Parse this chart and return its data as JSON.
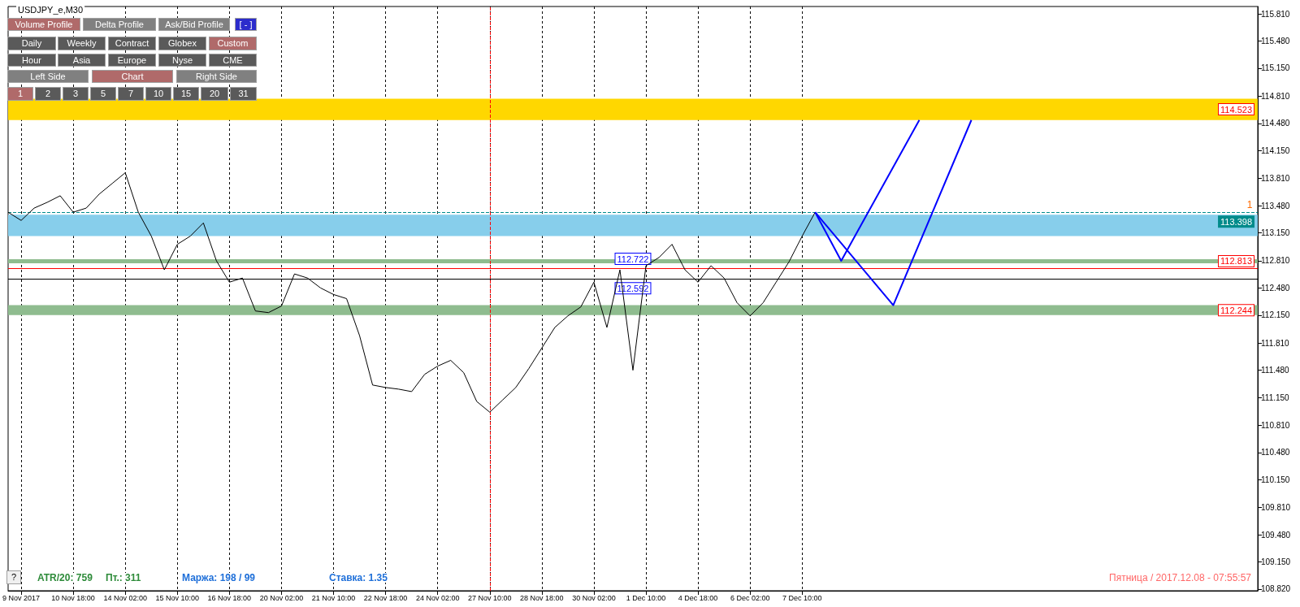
{
  "chart_data": {
    "type": "line",
    "title": "USDJPY_e,M30",
    "categories": [
      null,
      "9 Nov 2017",
      null,
      null,
      null,
      "10 Nov 18:00",
      null,
      null,
      null,
      "14 Nov 02:00",
      null,
      null,
      null,
      "15 Nov 10:00",
      null,
      null,
      null,
      "16 Nov 18:00",
      null,
      null,
      null,
      "20 Nov 02:00",
      null,
      null,
      null,
      "21 Nov 10:00",
      null,
      null,
      null,
      "22 Nov 18:00",
      null,
      null,
      null,
      "24 Nov 02:00",
      null,
      null,
      null,
      "27 Nov 10:00",
      null,
      null,
      null,
      "28 Nov 18:00",
      null,
      null,
      null,
      "30 Nov 02:00",
      null,
      null,
      null,
      "1 Dec 10:00",
      null,
      null,
      null,
      "4 Dec 18:00",
      null,
      null,
      null,
      "6 Dec 02:00",
      null,
      null,
      null,
      "7 Dec 10:00",
      null,
      null,
      null,
      null,
      null,
      null,
      null,
      null,
      null,
      null,
      null,
      null,
      null,
      null,
      null,
      null,
      null,
      null,
      null,
      null,
      null,
      null,
      null,
      null,
      null,
      null,
      null,
      null,
      null,
      null,
      null,
      null,
      null,
      null,
      null
    ],
    "series": [
      {
        "color": "#000000",
        "values": [
          113.4,
          113.3,
          113.45,
          113.52,
          113.6,
          113.4,
          113.45,
          113.62,
          113.75,
          113.88,
          113.4,
          113.11,
          112.7,
          113.01,
          113.11,
          113.27,
          112.81,
          112.55,
          112.6,
          112.2,
          112.18,
          112.26,
          112.65,
          112.6,
          112.48,
          112.4,
          112.35,
          111.9,
          111.3,
          111.27,
          111.25,
          111.22,
          111.43,
          111.53,
          111.6,
          111.45,
          111.1,
          110.97,
          111.12,
          111.27,
          111.5,
          111.75,
          112.0,
          112.14,
          112.25,
          112.55,
          112.0,
          112.7,
          111.48,
          112.75,
          112.85,
          113.01,
          112.7,
          112.55,
          112.75,
          112.6,
          112.3,
          112.14,
          112.3,
          112.55,
          112.8,
          113.11,
          113.4,
          null,
          null,
          null,
          null,
          null,
          null,
          null,
          null,
          null,
          null,
          null,
          null,
          null,
          null,
          null,
          null,
          null,
          null,
          null,
          null,
          null,
          null,
          null,
          null,
          null,
          null,
          null,
          null,
          null,
          null,
          null,
          null,
          null,
          null
        ]
      },
      {
        "color": "#0000ff",
        "values": [
          null,
          null,
          null,
          null,
          null,
          null,
          null,
          null,
          null,
          null,
          null,
          null,
          null,
          null,
          null,
          null,
          null,
          null,
          null,
          null,
          null,
          null,
          null,
          null,
          null,
          null,
          null,
          null,
          null,
          null,
          null,
          null,
          null,
          null,
          null,
          null,
          null,
          null,
          null,
          null,
          null,
          null,
          null,
          null,
          null,
          null,
          null,
          null,
          null,
          null,
          null,
          null,
          null,
          null,
          null,
          null,
          null,
          null,
          null,
          null,
          null,
          null,
          113.4,
          null,
          112.81,
          null,
          null,
          null,
          null,
          null,
          114.52,
          null,
          null,
          null,
          null,
          null,
          null,
          null,
          null,
          null,
          null,
          null,
          null,
          null,
          null,
          null,
          null,
          null,
          null,
          null,
          null,
          null,
          null,
          null,
          null,
          null,
          null
        ]
      },
      {
        "color": "#0000ff",
        "values": [
          null,
          null,
          null,
          null,
          null,
          null,
          null,
          null,
          null,
          null,
          null,
          null,
          null,
          null,
          null,
          null,
          null,
          null,
          null,
          null,
          null,
          null,
          null,
          null,
          null,
          null,
          null,
          null,
          null,
          null,
          null,
          null,
          null,
          null,
          null,
          null,
          null,
          null,
          null,
          null,
          null,
          null,
          null,
          null,
          null,
          null,
          null,
          null,
          null,
          null,
          null,
          null,
          null,
          null,
          null,
          null,
          null,
          null,
          null,
          null,
          null,
          null,
          113.4,
          null,
          null,
          null,
          null,
          null,
          112.27,
          null,
          null,
          null,
          null,
          null,
          114.52,
          null,
          null,
          null,
          null,
          null,
          null,
          null,
          null,
          null,
          null,
          null,
          null,
          null,
          null,
          null,
          null,
          null,
          null,
          null,
          null,
          null,
          null
        ]
      }
    ],
    "ylim": [
      108.8,
      115.9
    ],
    "yticks": [
      {
        "value": 108.82,
        "label": "108.820"
      },
      {
        "value": 109.15,
        "label": "109.150"
      },
      {
        "value": 109.48,
        "label": "109.480"
      },
      {
        "value": 109.81,
        "label": "109.810"
      },
      {
        "value": 110.15,
        "label": "110.150"
      },
      {
        "value": 110.48,
        "label": "110.480"
      },
      {
        "value": 110.81,
        "label": "110.810"
      },
      {
        "value": 111.15,
        "label": "111.150"
      },
      {
        "value": 111.48,
        "label": "111.480"
      },
      {
        "value": 111.81,
        "label": "111.810"
      },
      {
        "value": 112.15,
        "label": "112.150"
      },
      {
        "value": 112.48,
        "label": "112.480"
      },
      {
        "value": 112.81,
        "label": "112.810"
      },
      {
        "value": 113.15,
        "label": "113.150"
      },
      {
        "value": 113.48,
        "label": "113.480"
      },
      {
        "value": 113.81,
        "label": "113.810"
      },
      {
        "value": 114.15,
        "label": "114.150"
      },
      {
        "value": 114.48,
        "label": "114.480"
      },
      {
        "value": 114.81,
        "label": "114.810"
      },
      {
        "value": 115.15,
        "label": "115.150"
      },
      {
        "value": 115.48,
        "label": "115.480"
      },
      {
        "value": 115.81,
        "label": "115.810"
      }
    ],
    "grid": "x",
    "line_style": "solid",
    "marker": "none",
    "ref_lines": [
      {
        "axis": "y",
        "value": 113.398,
        "label": "113.398",
        "color": "#008b8b",
        "line_style": "dashed"
      },
      {
        "axis": "y",
        "value": 112.722,
        "label": "112.722",
        "color": "#ff0000",
        "line_style": "solid"
      },
      {
        "axis": "y",
        "value": 112.592,
        "label": "112.592",
        "color": "#000000",
        "line_style": "solid"
      },
      {
        "axis": "x",
        "value": "27 Nov 10:00",
        "label": null,
        "color": "#ff0000",
        "line_style": "dashed"
      }
    ],
    "bands": [
      {
        "axis": "y",
        "from": 114.52,
        "to": 114.78,
        "label": "114.523",
        "color": "#ffd700"
      },
      {
        "axis": "y",
        "from": 113.11,
        "to": 113.37,
        "label": null,
        "color": "#87ceeb"
      },
      {
        "axis": "y",
        "from": 112.78,
        "to": 112.83,
        "label": "112.813",
        "color": "#8fbc8f"
      },
      {
        "axis": "y",
        "from": 112.15,
        "to": 112.27,
        "label": "112.244",
        "color": "#8fbc8f"
      }
    ],
    "annotations": [
      "Volume Profile",
      "Delta Profile",
      "Ask/Bid Profile",
      "[ - ]",
      "Daily",
      "Weekly",
      "Contract",
      "Globex",
      "Custom",
      "Hour",
      "Asia",
      "Europe",
      "Nyse",
      "CME",
      "Left Side",
      "Chart",
      "Right Side",
      "1",
      "2",
      "3",
      "5",
      "7",
      "10",
      "15",
      "20",
      "31",
      "?",
      "ATR/20: 759",
      "Пт.: 311",
      "Маржа: 198 / 99",
      "Ставка: 1.35",
      "Пятница / 2017.12.08 - 07:55:57",
      "1"
    ]
  }
}
